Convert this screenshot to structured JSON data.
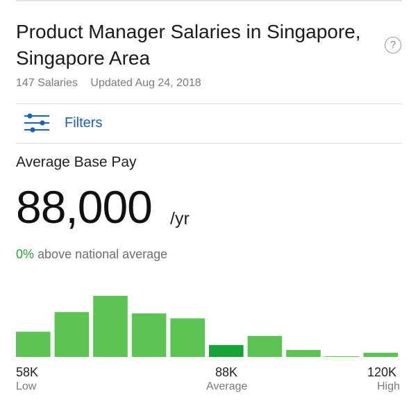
{
  "header": {
    "title": "Product Manager Salaries in Singapore, Singapore Area",
    "help_icon": "question-circle-icon",
    "salary_count": "147 Salaries",
    "updated": "Updated Aug 24, 2018"
  },
  "filters": {
    "label": "Filters",
    "icon": "sliders-icon"
  },
  "pay": {
    "label": "Average Base Pay",
    "value": "88,000",
    "unit": "/yr",
    "comparison_pct": "0%",
    "comparison_text": "above national average"
  },
  "colors": {
    "bar": "#5cc453",
    "bar_highlight": "#18a337",
    "link": "#1861bf",
    "positive": "#2aa33b"
  },
  "chart_data": {
    "type": "bar",
    "values": [
      36,
      64,
      87,
      62,
      55,
      17,
      30,
      10,
      1,
      6
    ],
    "highlight_index": 5,
    "axis": {
      "min_value": "58K",
      "min_label": "Low",
      "avg_value": "88K",
      "avg_label": "Average",
      "max_value": "120K",
      "max_label": "High"
    }
  }
}
